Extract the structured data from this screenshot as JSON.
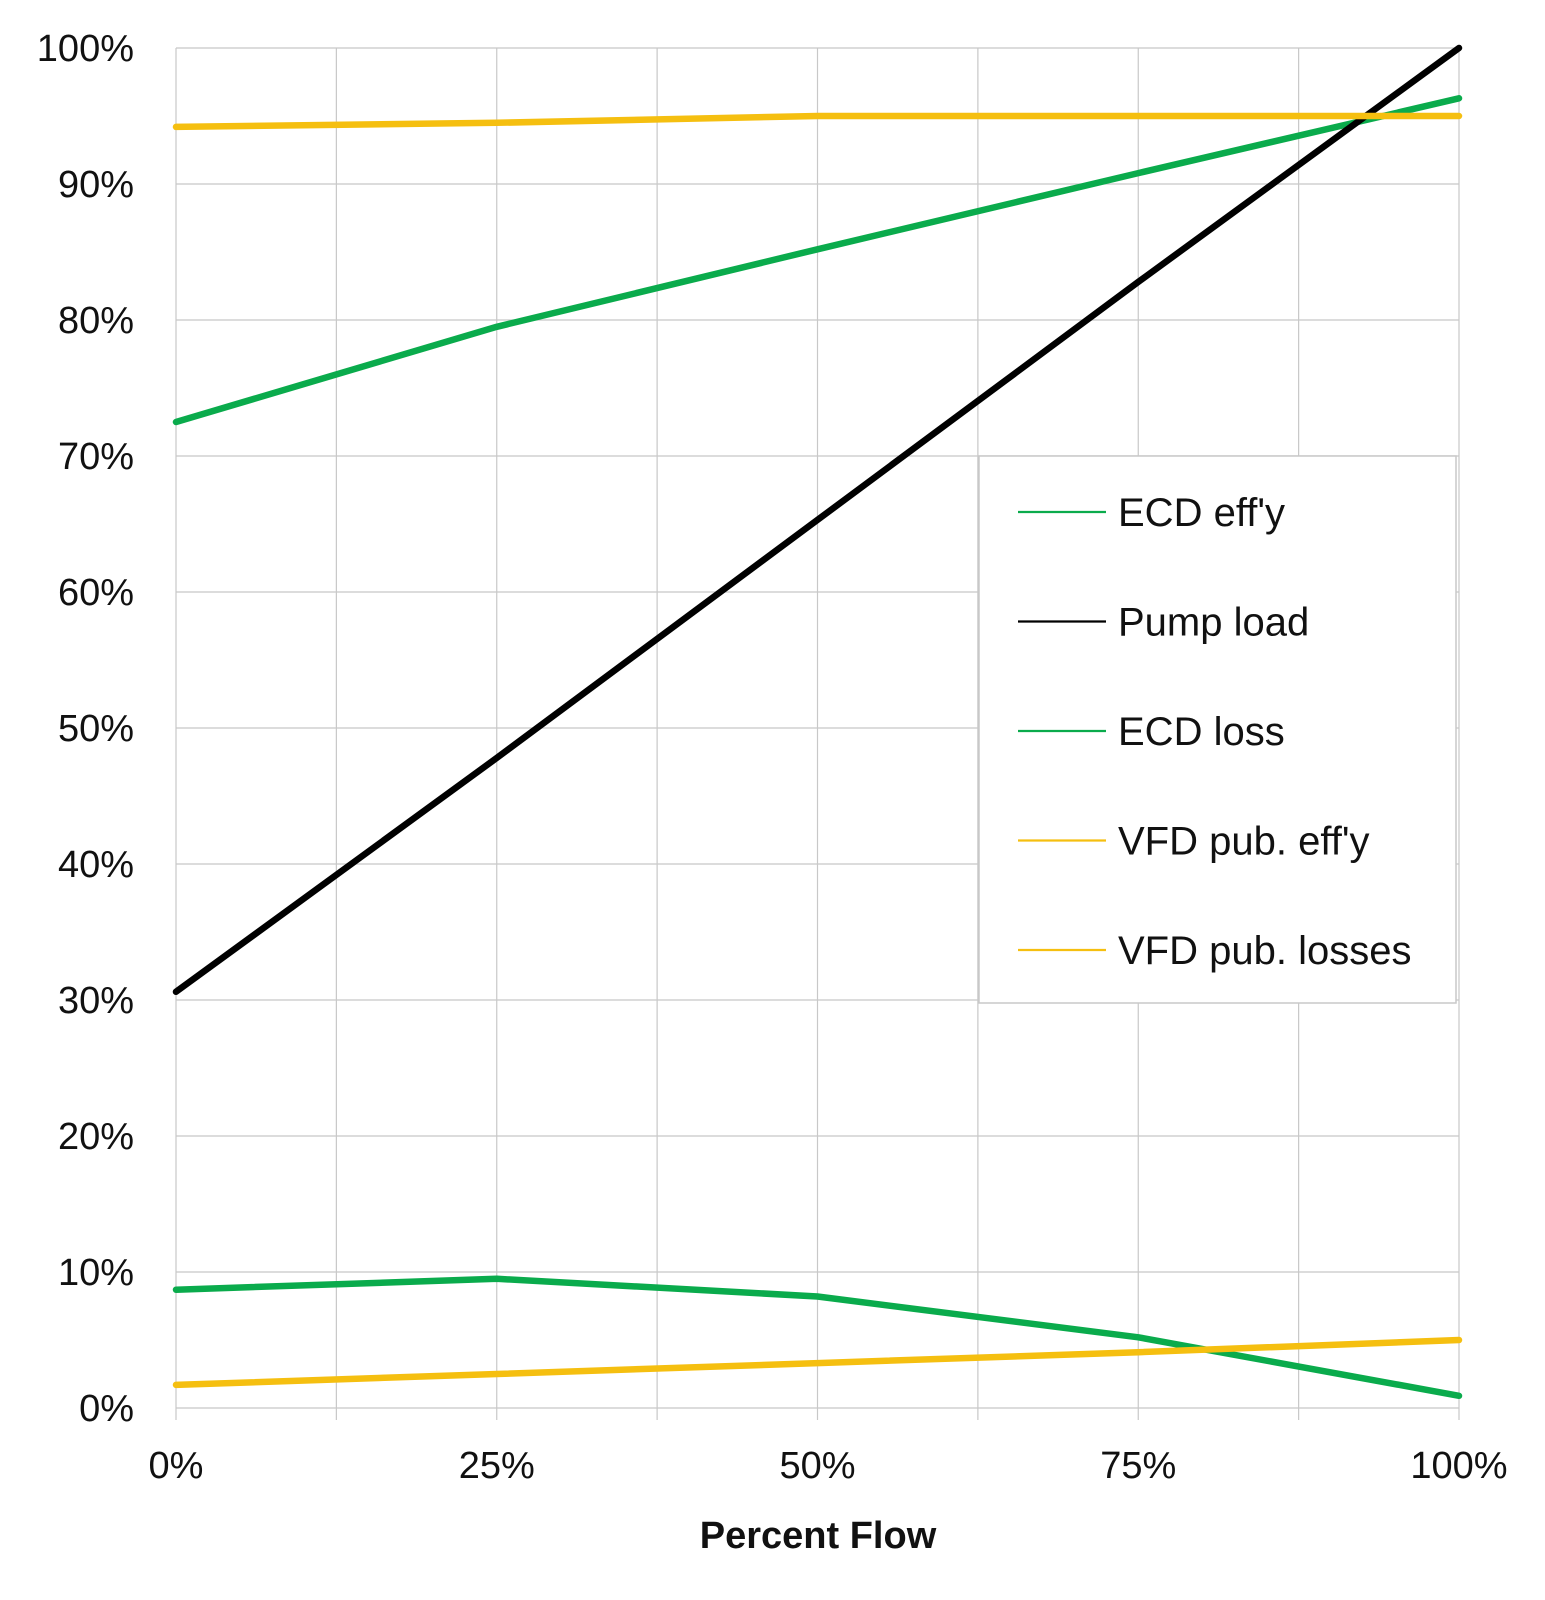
{
  "chart_data": {
    "type": "line",
    "title": "",
    "xlabel": "Percent Flow",
    "ylabel": "",
    "x": [
      0,
      25,
      50,
      75,
      100
    ],
    "x_tick_labels": [
      "0%",
      "25%",
      "50%",
      "75%",
      "100%"
    ],
    "y_tick_labels": [
      "0%",
      "10%",
      "20%",
      "30%",
      "40%",
      "50%",
      "60%",
      "70%",
      "80%",
      "90%",
      "100%"
    ],
    "xlim": [
      0,
      100
    ],
    "ylim": [
      0,
      100
    ],
    "grid": true,
    "legend_position": "right",
    "series": [
      {
        "name": "ECD eff'y",
        "color": "#0aab4c",
        "values": [
          72.5,
          79.5,
          85.2,
          90.8,
          96.3
        ]
      },
      {
        "name": "Pump load",
        "color": "#000000",
        "values": [
          30.6,
          47.8,
          65.3,
          82.8,
          100
        ]
      },
      {
        "name": "ECD loss",
        "color": "#0aab4c",
        "values": [
          8.7,
          9.5,
          8.2,
          5.2,
          0.9
        ]
      },
      {
        "name": "VFD pub. eff'y",
        "color": "#f5bf10",
        "values": [
          94.2,
          94.5,
          95.0,
          95.0,
          95.0
        ]
      },
      {
        "name": "VFD pub. losses",
        "color": "#f5bf10",
        "values": [
          1.7,
          2.5,
          3.3,
          4.1,
          5.0
        ]
      }
    ]
  }
}
